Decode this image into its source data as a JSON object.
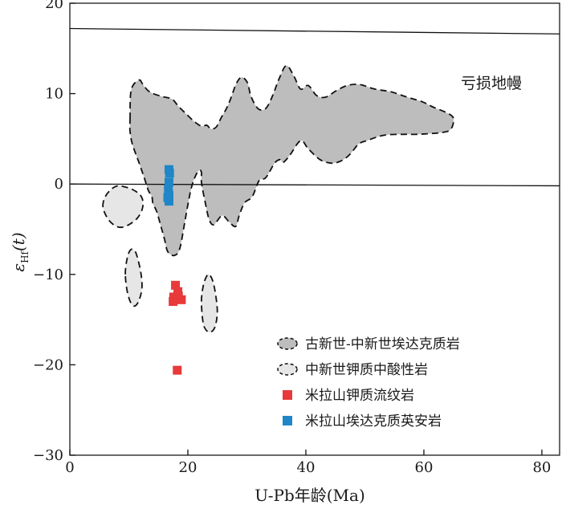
{
  "chart_data": {
    "type": "scatter",
    "xlabel": "U-Pb年龄(Ma)",
    "ylabel_main": "ε",
    "ylabel_sub": "Hf",
    "ylabel_suffix": "(t)",
    "xlim": [
      0,
      83
    ],
    "ylim": [
      -30,
      20
    ],
    "xticks": [
      0,
      20,
      40,
      60,
      80
    ],
    "yticks": [
      -30,
      -20,
      -10,
      0,
      10,
      20
    ],
    "ytick_labels": [
      "−30",
      "−20",
      "−10",
      "0",
      "10",
      "20"
    ],
    "grid": false,
    "annotation": "亏损地幔",
    "reference_lines": {
      "depleted_mantle": [
        [
          0,
          17.2
        ],
        [
          83,
          16.6
        ]
      ],
      "chur": [
        [
          0,
          0.0
        ],
        [
          83,
          -0.2
        ]
      ]
    },
    "fields": [
      {
        "id": "field-paleogene-miocene-adakitic",
        "fill": "#bdbdbd",
        "points": [
          [
            10.2,
            7.2
          ],
          [
            10.4,
            10.4
          ],
          [
            11.7,
            11.5
          ],
          [
            12.4,
            11.0
          ],
          [
            13.5,
            10.2
          ],
          [
            15.5,
            9.7
          ],
          [
            17.3,
            9.4
          ],
          [
            18.4,
            8.6
          ],
          [
            19.8,
            7.7
          ],
          [
            21.1,
            6.9
          ],
          [
            22.3,
            6.4
          ],
          [
            23.2,
            6.5
          ],
          [
            23.9,
            6.1
          ],
          [
            24.8,
            6.3
          ],
          [
            25.7,
            7.4
          ],
          [
            26.5,
            8.3
          ],
          [
            27.3,
            9.5
          ],
          [
            28.2,
            11.1
          ],
          [
            29.1,
            11.8
          ],
          [
            30.1,
            11.2
          ],
          [
            30.7,
            9.7
          ],
          [
            31.8,
            8.4
          ],
          [
            32.8,
            8.2
          ],
          [
            33.6,
            8.7
          ],
          [
            34.5,
            10.0
          ],
          [
            35.5,
            11.7
          ],
          [
            36.7,
            13.1
          ],
          [
            38.0,
            11.9
          ],
          [
            39.1,
            10.5
          ],
          [
            40.4,
            10.9
          ],
          [
            41.8,
            9.8
          ],
          [
            43.3,
            9.6
          ],
          [
            45.1,
            10.3
          ],
          [
            47.0,
            10.9
          ],
          [
            49.1,
            11.0
          ],
          [
            51.7,
            10.5
          ],
          [
            54.4,
            10.2
          ],
          [
            57.2,
            9.6
          ],
          [
            59.7,
            9.1
          ],
          [
            61.6,
            8.5
          ],
          [
            63.8,
            7.9
          ],
          [
            65.0,
            7.3
          ],
          [
            64.6,
            6.1
          ],
          [
            63.1,
            5.7
          ],
          [
            59.0,
            5.5
          ],
          [
            56.7,
            5.5
          ],
          [
            53.3,
            5.4
          ],
          [
            50.3,
            4.8
          ],
          [
            48.9,
            4.4
          ],
          [
            47.5,
            3.3
          ],
          [
            46.1,
            2.6
          ],
          [
            44.4,
            2.3
          ],
          [
            42.4,
            2.7
          ],
          [
            40.4,
            3.9
          ],
          [
            39.1,
            4.8
          ],
          [
            37.3,
            3.2
          ],
          [
            36.2,
            2.4
          ],
          [
            35.6,
            2.7
          ],
          [
            34.7,
            2.3
          ],
          [
            33.2,
            0.7
          ],
          [
            32.1,
            0.4
          ],
          [
            30.9,
            -1.4
          ],
          [
            29.6,
            -2.1
          ],
          [
            28.7,
            -3.5
          ],
          [
            28.1,
            -4.7
          ],
          [
            27.0,
            -4.2
          ],
          [
            25.8,
            -3.5
          ],
          [
            24.4,
            -4.5
          ],
          [
            23.6,
            -3.9
          ],
          [
            22.9,
            -1.9
          ],
          [
            22.3,
            0.2
          ],
          [
            22.3,
            1.3
          ],
          [
            21.9,
            1.5
          ],
          [
            21.3,
            0.9
          ],
          [
            20.6,
            -0.4
          ],
          [
            20.0,
            -2.3
          ],
          [
            19.4,
            -4.5
          ],
          [
            18.6,
            -7.2
          ],
          [
            17.7,
            -7.9
          ],
          [
            16.6,
            -7.5
          ],
          [
            16.0,
            -6.0
          ],
          [
            15.4,
            -4.6
          ],
          [
            14.7,
            -3.0
          ],
          [
            14.1,
            -2.2
          ],
          [
            13.9,
            -1.4
          ],
          [
            13.3,
            -0.7
          ],
          [
            12.6,
            0.7
          ],
          [
            11.7,
            2.4
          ],
          [
            10.6,
            4.4
          ],
          [
            10.2,
            5.8
          ]
        ]
      },
      {
        "id": "field-miocene-ultrapotassic-1",
        "fill": "#e6e6e6",
        "points": [
          [
            5.6,
            -2.5
          ],
          [
            6.0,
            -1.4
          ],
          [
            7.0,
            -0.6
          ],
          [
            8.1,
            -0.2
          ],
          [
            9.2,
            -0.3
          ],
          [
            10.6,
            -0.6
          ],
          [
            11.9,
            -1.2
          ],
          [
            12.4,
            -2.0
          ],
          [
            12.2,
            -2.9
          ],
          [
            11.4,
            -3.8
          ],
          [
            10.0,
            -4.5
          ],
          [
            8.6,
            -4.8
          ],
          [
            7.4,
            -4.5
          ],
          [
            6.3,
            -3.7
          ]
        ]
      },
      {
        "id": "field-miocene-ultrapotassic-2",
        "fill": "#e6e6e6",
        "points": [
          [
            9.4,
            -10.0
          ],
          [
            9.6,
            -8.6
          ],
          [
            10.0,
            -7.6
          ],
          [
            10.5,
            -7.2
          ],
          [
            11.1,
            -7.5
          ],
          [
            11.6,
            -8.5
          ],
          [
            12.1,
            -10.1
          ],
          [
            12.2,
            -11.6
          ],
          [
            11.7,
            -12.9
          ],
          [
            11.0,
            -13.5
          ],
          [
            10.3,
            -13.1
          ],
          [
            9.7,
            -11.8
          ]
        ]
      },
      {
        "id": "field-miocene-ultrapotassic-3",
        "fill": "#e6e6e6",
        "points": [
          [
            22.3,
            -13.0
          ],
          [
            22.6,
            -11.3
          ],
          [
            23.1,
            -10.3
          ],
          [
            23.6,
            -10.0
          ],
          [
            24.2,
            -10.7
          ],
          [
            24.7,
            -12.2
          ],
          [
            25.0,
            -14.1
          ],
          [
            24.7,
            -15.6
          ],
          [
            24.1,
            -16.3
          ],
          [
            23.3,
            -16.3
          ],
          [
            22.6,
            -15.4
          ]
        ]
      }
    ],
    "series": [
      {
        "name": "米拉山钾质流纹岩",
        "color": "#e8393b",
        "points": [
          [
            17.9,
            -11.2
          ],
          [
            18.3,
            -11.9
          ],
          [
            17.6,
            -12.5
          ],
          [
            18.4,
            -12.4
          ],
          [
            18.9,
            -12.8
          ],
          [
            17.5,
            -13.0
          ],
          [
            18.2,
            -20.6
          ]
        ]
      },
      {
        "name": "米拉山埃达克质英安岩",
        "color": "#1f86c7",
        "points": [
          [
            16.8,
            1.6
          ],
          [
            16.9,
            1.2
          ],
          [
            16.8,
            0.2
          ],
          [
            16.7,
            -0.6
          ],
          [
            16.8,
            -1.2
          ],
          [
            16.6,
            -1.5
          ],
          [
            16.8,
            -1.9
          ]
        ]
      }
    ],
    "legend": {
      "position": "bottom-right",
      "entries": [
        {
          "label": "古新世-中新世埃达克质岩",
          "kind": "field",
          "fill": "#bdbdbd"
        },
        {
          "label": "中新世钾质中酸性岩",
          "kind": "field",
          "fill": "#e6e6e6"
        },
        {
          "label": "米拉山钾质流纹岩",
          "kind": "marker",
          "color": "#e8393b"
        },
        {
          "label": "米拉山埃达克质英安岩",
          "kind": "marker",
          "color": "#1f86c7"
        }
      ]
    }
  }
}
